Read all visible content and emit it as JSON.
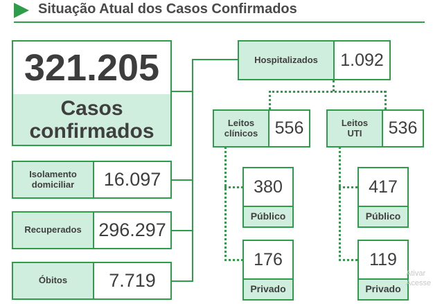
{
  "title": "Situação Atual dos Casos Confirmados",
  "main": {
    "value": "321.205",
    "label_line1": "Casos",
    "label_line2": "confirmados"
  },
  "isolamento": {
    "label_line1": "Isolamento",
    "label_line2": "domiciliar",
    "value": "16.097"
  },
  "recuperados": {
    "label": "Recuperados",
    "value": "296.297"
  },
  "obitos": {
    "label": "Óbitos",
    "value": "7.719"
  },
  "hospitalizados": {
    "label": "Hospitalizados",
    "value": "1.092"
  },
  "leitos_clinicos": {
    "label_line1": "Leitos",
    "label_line2": "clínicos",
    "value": "556",
    "publico": {
      "value": "380",
      "label": "Público"
    },
    "privado": {
      "value": "176",
      "label": "Privado"
    }
  },
  "leitos_uti": {
    "label_line1": "Leitos",
    "label_line2": "UTI",
    "value": "536",
    "publico": {
      "value": "417",
      "label": "Público"
    },
    "privado": {
      "value": "119",
      "label": "Privado"
    }
  },
  "watermark": {
    "line1": "Ativar",
    "line2": "Acesse C"
  },
  "colors": {
    "accent": "#2e9d4a",
    "fill": "#cfeedd",
    "text": "#3e3e3e"
  }
}
